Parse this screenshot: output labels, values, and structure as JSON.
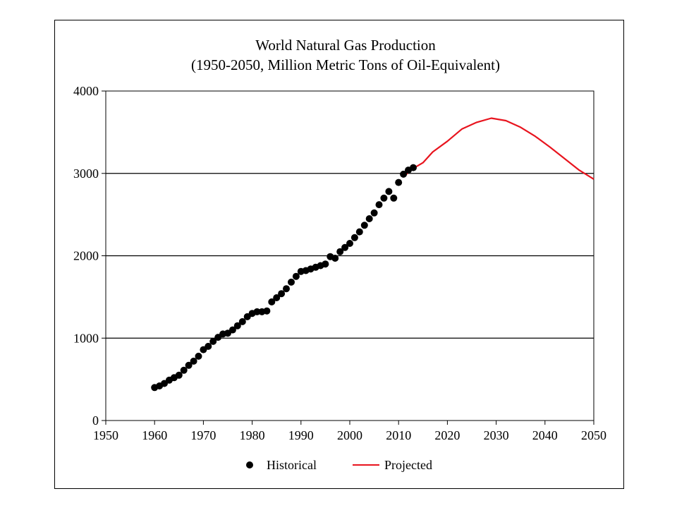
{
  "chart_data": {
    "type": "scatter+line",
    "title": "World Natural Gas Production",
    "subtitle": "(1950-2050,  Million Metric Tons of Oil-Equivalent)",
    "xlabel": "",
    "ylabel": "",
    "xlim": [
      1950,
      2050
    ],
    "ylim": [
      0,
      4000
    ],
    "x_ticks": [
      1950,
      1960,
      1970,
      1980,
      1990,
      2000,
      2010,
      2020,
      2030,
      2040,
      2050
    ],
    "y_ticks": [
      0,
      1000,
      2000,
      3000,
      4000
    ],
    "grid": "horizontal",
    "legend": "bottom",
    "series": [
      {
        "name": "Historical",
        "kind": "scatter",
        "color": "#000000",
        "points": [
          [
            1960,
            400
          ],
          [
            1961,
            420
          ],
          [
            1962,
            450
          ],
          [
            1963,
            490
          ],
          [
            1964,
            520
          ],
          [
            1965,
            550
          ],
          [
            1966,
            610
          ],
          [
            1967,
            670
          ],
          [
            1968,
            720
          ],
          [
            1969,
            780
          ],
          [
            1970,
            860
          ],
          [
            1971,
            900
          ],
          [
            1972,
            960
          ],
          [
            1973,
            1010
          ],
          [
            1974,
            1050
          ],
          [
            1975,
            1060
          ],
          [
            1976,
            1100
          ],
          [
            1977,
            1150
          ],
          [
            1978,
            1200
          ],
          [
            1979,
            1260
          ],
          [
            1980,
            1300
          ],
          [
            1981,
            1320
          ],
          [
            1982,
            1320
          ],
          [
            1983,
            1330
          ],
          [
            1984,
            1440
          ],
          [
            1985,
            1490
          ],
          [
            1986,
            1540
          ],
          [
            1987,
            1600
          ],
          [
            1988,
            1680
          ],
          [
            1989,
            1750
          ],
          [
            1990,
            1810
          ],
          [
            1991,
            1820
          ],
          [
            1992,
            1840
          ],
          [
            1993,
            1860
          ],
          [
            1994,
            1880
          ],
          [
            1995,
            1900
          ],
          [
            1996,
            1990
          ],
          [
            1997,
            1970
          ],
          [
            1998,
            2050
          ],
          [
            1999,
            2100
          ],
          [
            2000,
            2150
          ],
          [
            2001,
            2220
          ],
          [
            2002,
            2290
          ],
          [
            2003,
            2370
          ],
          [
            2004,
            2450
          ],
          [
            2005,
            2520
          ],
          [
            2006,
            2620
          ],
          [
            2007,
            2700
          ],
          [
            2008,
            2780
          ],
          [
            2009,
            2700
          ],
          [
            2010,
            2890
          ],
          [
            2011,
            2990
          ],
          [
            2012,
            3040
          ],
          [
            2013,
            3070
          ]
        ]
      },
      {
        "name": "Projected",
        "kind": "line",
        "color": "#e8141e",
        "points": [
          [
            2011,
            2960
          ],
          [
            2013,
            3060
          ],
          [
            2015,
            3130
          ],
          [
            2017,
            3260
          ],
          [
            2020,
            3390
          ],
          [
            2023,
            3540
          ],
          [
            2026,
            3620
          ],
          [
            2029,
            3670
          ],
          [
            2032,
            3640
          ],
          [
            2035,
            3560
          ],
          [
            2038,
            3450
          ],
          [
            2041,
            3320
          ],
          [
            2044,
            3180
          ],
          [
            2047,
            3040
          ],
          [
            2050,
            2930
          ]
        ]
      }
    ]
  }
}
